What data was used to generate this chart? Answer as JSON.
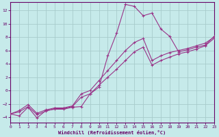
{
  "xlabel": "Windchill (Refroidissement éolien,°C)",
  "background_color": "#c6eaea",
  "grid_color": "#a8cccc",
  "line_color": "#993388",
  "xlim": [
    0,
    23
  ],
  "ylim": [
    -4.8,
    13.2
  ],
  "xticks": [
    0,
    1,
    2,
    3,
    4,
    5,
    6,
    7,
    8,
    9,
    10,
    11,
    12,
    13,
    14,
    15,
    16,
    17,
    18,
    19,
    20,
    21,
    22,
    23
  ],
  "yticks": [
    -4,
    -2,
    0,
    2,
    4,
    6,
    8,
    10,
    12
  ],
  "line1_x": [
    0,
    1,
    2,
    3,
    4,
    5,
    6,
    7,
    8,
    9,
    10,
    11,
    12,
    13,
    14,
    15,
    16,
    17,
    18,
    19,
    20,
    21,
    22,
    23
  ],
  "line1_y": [
    -3.5,
    -3.8,
    -2.5,
    -4.1,
    -3.0,
    -2.8,
    -2.8,
    -2.5,
    -2.4,
    -0.5,
    0.5,
    5.2,
    8.6,
    12.9,
    12.6,
    11.2,
    11.6,
    9.2,
    8.1,
    5.8,
    6.1,
    6.5,
    6.8,
    8.1
  ],
  "line2_x": [
    0,
    1,
    2,
    3,
    4,
    5,
    6,
    7,
    8,
    9,
    10,
    11,
    12,
    13,
    14,
    15,
    16,
    17,
    18,
    19,
    20,
    21,
    22,
    23
  ],
  "line2_y": [
    -3.5,
    -3.2,
    -2.4,
    -3.6,
    -3.1,
    -2.7,
    -2.7,
    -2.4,
    -1.0,
    -0.5,
    0.8,
    2.0,
    3.2,
    4.5,
    5.8,
    6.5,
    3.8,
    4.5,
    5.0,
    5.5,
    5.8,
    6.2,
    6.7,
    7.8
  ],
  "line3_x": [
    0,
    1,
    2,
    3,
    4,
    5,
    6,
    7,
    8,
    9,
    10,
    11,
    12,
    13,
    14,
    15,
    16,
    17,
    18,
    19,
    20,
    21,
    22,
    23
  ],
  "line3_y": [
    -3.5,
    -3.0,
    -2.1,
    -3.4,
    -2.9,
    -2.6,
    -2.6,
    -2.3,
    -0.5,
    0.0,
    1.5,
    3.0,
    4.5,
    6.0,
    7.2,
    7.8,
    4.5,
    5.2,
    5.7,
    6.0,
    6.3,
    6.7,
    7.1,
    8.0
  ]
}
